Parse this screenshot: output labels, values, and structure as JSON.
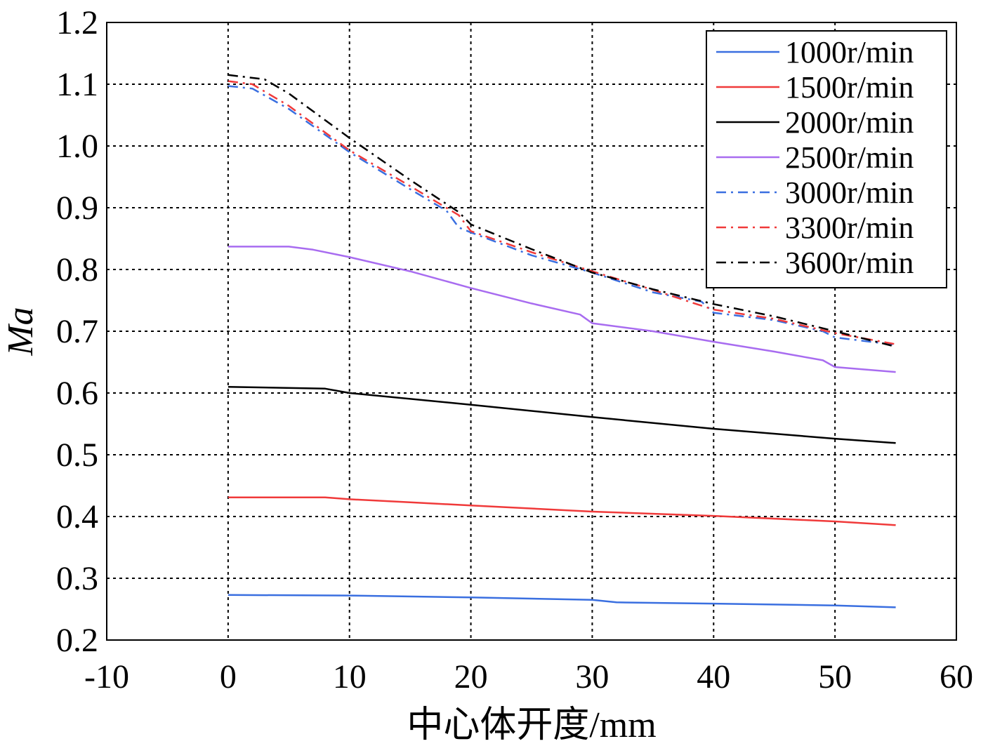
{
  "chart_data": {
    "type": "line",
    "title": "",
    "xlabel": "中心体开度/mm",
    "ylabel": "Ma",
    "xlim": [
      -10,
      60
    ],
    "ylim": [
      0.2,
      1.2
    ],
    "xticks": [
      "-10",
      "0",
      "10",
      "20",
      "30",
      "40",
      "50",
      "60"
    ],
    "yticks": [
      "0.2",
      "0.3",
      "0.4",
      "0.5",
      "0.6",
      "0.7",
      "0.8",
      "0.9",
      "1.0",
      "1.1",
      "1.2"
    ],
    "grid": true,
    "legend_position": "top-right",
    "series": [
      {
        "name": "1000r/min",
        "color": "#3a6fe0",
        "style": "solid",
        "x": [
          0,
          10,
          20,
          30,
          32,
          40,
          50,
          55
        ],
        "y": [
          0.273,
          0.272,
          0.269,
          0.265,
          0.261,
          0.259,
          0.256,
          0.253
        ]
      },
      {
        "name": "1500r/min",
        "color": "#f03a3a",
        "style": "solid",
        "x": [
          0,
          8,
          10,
          15,
          20,
          30,
          40,
          50,
          55
        ],
        "y": [
          0.431,
          0.431,
          0.428,
          0.423,
          0.418,
          0.408,
          0.401,
          0.392,
          0.386
        ]
      },
      {
        "name": "2000r/min",
        "color": "#000000",
        "style": "solid",
        "x": [
          0,
          8,
          10,
          20,
          30,
          40,
          50,
          55
        ],
        "y": [
          0.61,
          0.607,
          0.6,
          0.581,
          0.561,
          0.542,
          0.526,
          0.519
        ]
      },
      {
        "name": "2500r/min",
        "color": "#a86cf0",
        "style": "solid",
        "x": [
          0,
          5,
          7,
          10,
          15,
          20,
          25,
          29,
          30,
          35,
          40,
          45,
          49,
          50,
          55
        ],
        "y": [
          0.837,
          0.837,
          0.832,
          0.82,
          0.797,
          0.77,
          0.745,
          0.727,
          0.713,
          0.7,
          0.683,
          0.667,
          0.653,
          0.642,
          0.634
        ]
      },
      {
        "name": "3000r/min",
        "color": "#3a6fe0",
        "style": "dashdot",
        "x": [
          0,
          2,
          5,
          10,
          15,
          18,
          19,
          20,
          25,
          30,
          35,
          39,
          40,
          45,
          49,
          50,
          55
        ],
        "y": [
          1.097,
          1.093,
          1.06,
          0.99,
          0.93,
          0.895,
          0.868,
          0.86,
          0.823,
          0.795,
          0.763,
          0.748,
          0.73,
          0.718,
          0.7,
          0.69,
          0.678
        ]
      },
      {
        "name": "3300r/min",
        "color": "#f03a3a",
        "style": "dashdot",
        "x": [
          0,
          2,
          5,
          10,
          15,
          19,
          20,
          25,
          30,
          35,
          40,
          45,
          50,
          55
        ],
        "y": [
          1.105,
          1.1,
          1.065,
          0.993,
          0.935,
          0.888,
          0.862,
          0.828,
          0.797,
          0.767,
          0.735,
          0.72,
          0.697,
          0.679
        ]
      },
      {
        "name": "3600r/min",
        "color": "#000000",
        "style": "dashdot",
        "x": [
          0,
          3,
          5,
          10,
          15,
          19,
          20,
          25,
          30,
          35,
          40,
          45,
          50,
          55
        ],
        "y": [
          1.115,
          1.108,
          1.085,
          1.013,
          0.945,
          0.893,
          0.873,
          0.833,
          0.795,
          0.768,
          0.744,
          0.724,
          0.7,
          0.675
        ]
      }
    ]
  }
}
